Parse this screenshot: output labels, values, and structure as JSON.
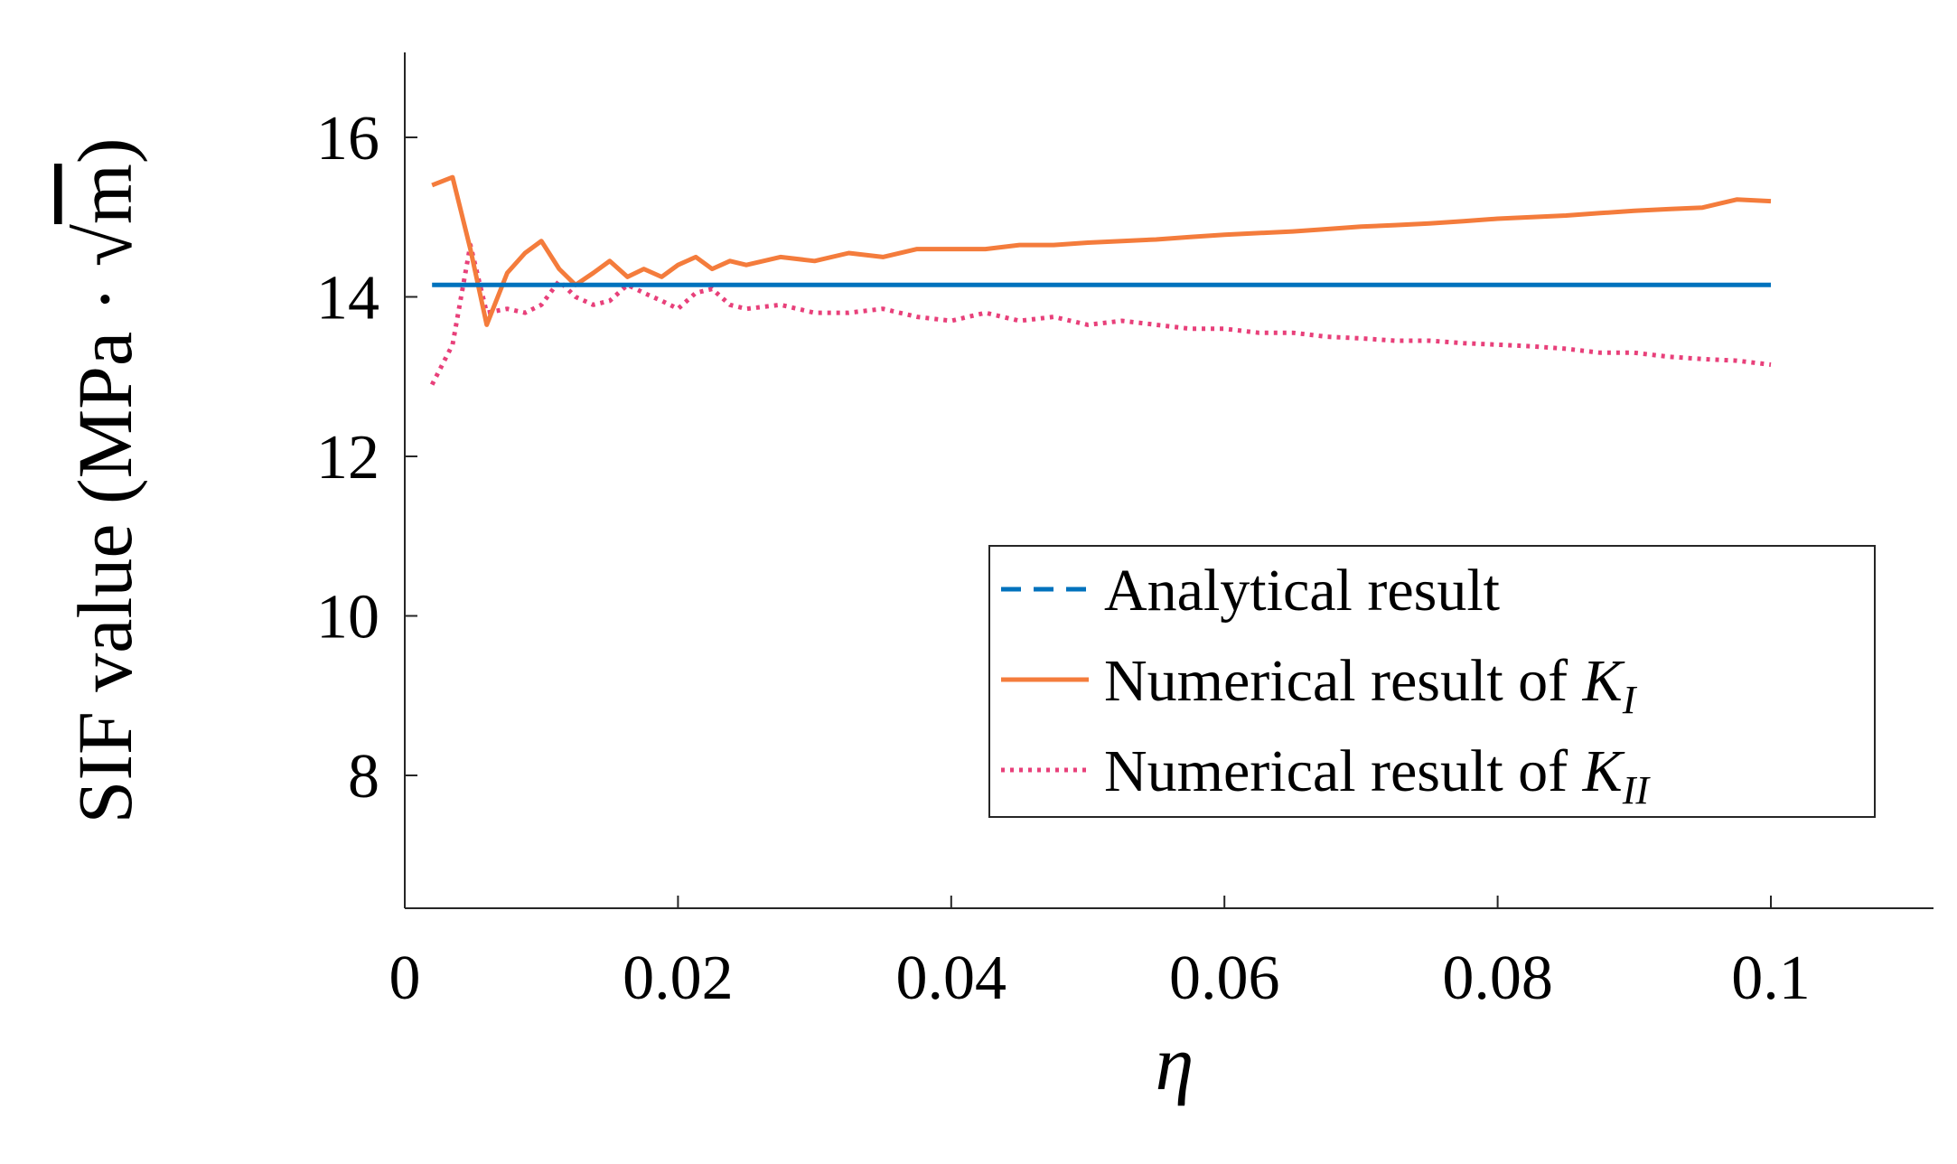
{
  "chart_data": {
    "type": "line",
    "title": "",
    "xlabel": "η",
    "ylabel": "SIF value (MPa · √m)",
    "ylabel_parts": {
      "prefix": "SIF value (MPa · ",
      "radical": "√",
      "radicand": "m",
      "suffix": ")"
    },
    "xlim": [
      0,
      0.111
    ],
    "ylim": [
      6.5,
      17.1
    ],
    "xticks": [
      0,
      0.02,
      0.04,
      0.06,
      0.08,
      0.1
    ],
    "xtick_labels": [
      "0",
      "0.02",
      "0.04",
      "0.06",
      "0.08",
      "0.1"
    ],
    "yticks": [
      8,
      10,
      12,
      14,
      16
    ],
    "ytick_labels": [
      "8",
      "10",
      "12",
      "14",
      "16"
    ],
    "grid": false,
    "legend_position": "center-right",
    "series": [
      {
        "name": "Analytical result",
        "legend_label": "Analytical result",
        "color": "#0072bd",
        "style": "dashed",
        "x": [
          0.002,
          0.1
        ],
        "y": [
          14.15,
          14.15
        ]
      },
      {
        "name": "Numerical result of K_I",
        "legend_label": "Numerical result of ",
        "legend_symbol": "K",
        "legend_subscript": "I",
        "color": "#f47c3c",
        "style": "solid",
        "x": [
          0.002,
          0.0035,
          0.0048,
          0.006,
          0.0075,
          0.0088,
          0.01,
          0.0113,
          0.0125,
          0.0138,
          0.015,
          0.0163,
          0.0175,
          0.0188,
          0.02,
          0.0213,
          0.0225,
          0.0238,
          0.025,
          0.0275,
          0.03,
          0.0325,
          0.035,
          0.0375,
          0.04,
          0.0425,
          0.045,
          0.0475,
          0.05,
          0.0525,
          0.055,
          0.0575,
          0.06,
          0.0625,
          0.065,
          0.0675,
          0.07,
          0.0725,
          0.075,
          0.0775,
          0.08,
          0.0825,
          0.085,
          0.0875,
          0.09,
          0.0925,
          0.095,
          0.0975,
          0.1
        ],
        "y": [
          15.4,
          15.5,
          14.6,
          13.65,
          14.3,
          14.55,
          14.7,
          14.35,
          14.15,
          14.3,
          14.45,
          14.25,
          14.35,
          14.25,
          14.4,
          14.5,
          14.35,
          14.45,
          14.4,
          14.5,
          14.45,
          14.55,
          14.5,
          14.6,
          14.6,
          14.6,
          14.65,
          14.65,
          14.68,
          14.7,
          14.72,
          14.75,
          14.78,
          14.8,
          14.82,
          14.85,
          14.88,
          14.9,
          14.92,
          14.95,
          14.98,
          15.0,
          15.02,
          15.05,
          15.08,
          15.1,
          15.12,
          15.22,
          15.2
        ]
      },
      {
        "name": "Numerical result of K_II",
        "legend_label": "Numerical result of ",
        "legend_symbol": "K",
        "legend_subscript": "II",
        "color": "#e8407a",
        "style": "dotted",
        "x": [
          0.002,
          0.0035,
          0.0048,
          0.006,
          0.0075,
          0.0088,
          0.01,
          0.0113,
          0.0125,
          0.0138,
          0.015,
          0.0163,
          0.0175,
          0.0188,
          0.02,
          0.0213,
          0.0225,
          0.0238,
          0.025,
          0.0275,
          0.03,
          0.0325,
          0.035,
          0.0375,
          0.04,
          0.0425,
          0.045,
          0.0475,
          0.05,
          0.0525,
          0.055,
          0.0575,
          0.06,
          0.0625,
          0.065,
          0.0675,
          0.07,
          0.0725,
          0.075,
          0.0775,
          0.08,
          0.0825,
          0.085,
          0.0875,
          0.09,
          0.0925,
          0.095,
          0.0975,
          0.1
        ],
        "y": [
          12.9,
          13.4,
          14.65,
          13.8,
          13.85,
          13.8,
          13.9,
          14.2,
          14.0,
          13.9,
          13.95,
          14.15,
          14.05,
          13.95,
          13.85,
          14.05,
          14.1,
          13.9,
          13.85,
          13.9,
          13.8,
          13.8,
          13.85,
          13.75,
          13.7,
          13.8,
          13.7,
          13.75,
          13.65,
          13.7,
          13.65,
          13.6,
          13.6,
          13.55,
          13.55,
          13.5,
          13.48,
          13.45,
          13.45,
          13.42,
          13.4,
          13.38,
          13.35,
          13.3,
          13.3,
          13.25,
          13.22,
          13.2,
          13.15
        ]
      }
    ]
  }
}
